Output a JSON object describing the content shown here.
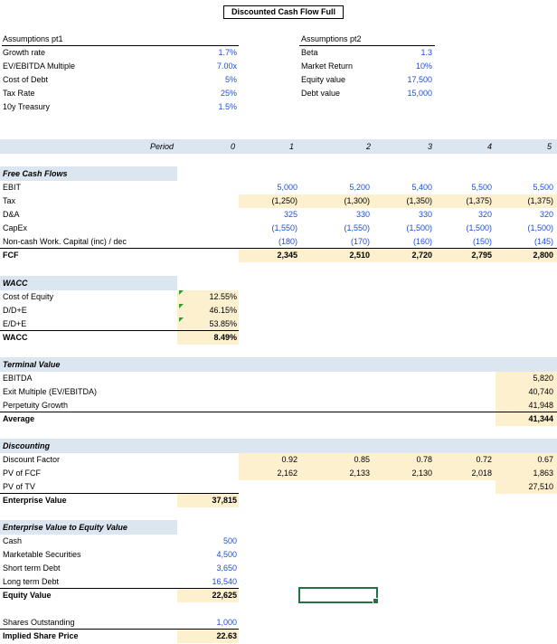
{
  "title": "Discounted Cash Flow Full",
  "assumptions1": {
    "header": "Assumptions pt1",
    "rows": [
      {
        "label": "Growth rate",
        "value": "1.7%"
      },
      {
        "label": "EV/EBITDA Multiple",
        "value": "7.00x"
      },
      {
        "label": "Cost of Debt",
        "value": "5%"
      },
      {
        "label": "Tax Rate",
        "value": "25%"
      },
      {
        "label": "10y Treasury",
        "value": "1.5%"
      }
    ]
  },
  "assumptions2": {
    "header": "Assumptions pt2",
    "rows": [
      {
        "label": "Beta",
        "value": "1.3"
      },
      {
        "label": "Market Return",
        "value": "10%"
      },
      {
        "label": "Equity value",
        "value": "17,500"
      },
      {
        "label": "Debt value",
        "value": "15,000"
      }
    ]
  },
  "period": {
    "label": "Period",
    "values": [
      "0",
      "1",
      "2",
      "3",
      "4",
      "5"
    ]
  },
  "fcf": {
    "header": "Free Cash Flows",
    "rows": [
      {
        "label": "EBIT",
        "values": [
          "5,000",
          "5,200",
          "5,400",
          "5,500",
          "5,500"
        ]
      },
      {
        "label": "Tax",
        "values": [
          "(1,250)",
          "(1,300)",
          "(1,350)",
          "(1,375)",
          "(1,375)"
        ]
      },
      {
        "label": "D&A",
        "values": [
          "325",
          "330",
          "330",
          "320",
          "320"
        ]
      },
      {
        "label": "CapEx",
        "values": [
          "(1,550)",
          "(1,550)",
          "(1,500)",
          "(1,500)",
          "(1,500)"
        ]
      },
      {
        "label": "Non-cash Work. Capital (inc) / dec",
        "values": [
          "(180)",
          "(170)",
          "(160)",
          "(150)",
          "(145)"
        ]
      }
    ],
    "total": {
      "label": "FCF",
      "values": [
        "2,345",
        "2,510",
        "2,720",
        "2,795",
        "2,800"
      ]
    }
  },
  "wacc": {
    "header": "WACC",
    "rows": [
      {
        "label": "Cost of Equity",
        "value": "12.55%"
      },
      {
        "label": "D/D+E",
        "value": "46.15%"
      },
      {
        "label": "E/D+E",
        "value": "53.85%"
      }
    ],
    "total": {
      "label": "WACC",
      "value": "8.49%"
    }
  },
  "terminal": {
    "header": "Terminal Value",
    "rows": [
      {
        "label": "EBITDA",
        "value": "5,820"
      },
      {
        "label": "Exit Multiple (EV/EBITDA)",
        "value": "40,740"
      },
      {
        "label": "Perpetuity Growth",
        "value": "41,948"
      }
    ],
    "total": {
      "label": "Average",
      "value": "41,344"
    }
  },
  "discounting": {
    "header": "Discounting",
    "discount_factor": {
      "label": "Discount Factor",
      "values": [
        "0.92",
        "0.85",
        "0.78",
        "0.72",
        "0.67"
      ]
    },
    "pv_fcf": {
      "label": "PV of FCF",
      "values": [
        "2,162",
        "2,133",
        "2,130",
        "2,018",
        "1,863"
      ]
    },
    "pv_tv": {
      "label": "PV of TV",
      "value": "27,510"
    },
    "ev": {
      "label": "Enterprise Value",
      "value": "37,815"
    }
  },
  "ev_to_equity": {
    "header": "Enterprise Value to Equity Value",
    "rows": [
      {
        "label": "Cash",
        "value": "500"
      },
      {
        "label": "Marketable Securities",
        "value": "4,500"
      },
      {
        "label": "Short term Debt",
        "value": "3,650"
      },
      {
        "label": "Long term Debt",
        "value": "16,540"
      }
    ],
    "total": {
      "label": "Equity Value",
      "value": "22,625"
    }
  },
  "shares": {
    "label": "Shares Outstanding",
    "value": "1,000"
  },
  "price": {
    "label": "Implied Share Price",
    "value": "22.63"
  }
}
